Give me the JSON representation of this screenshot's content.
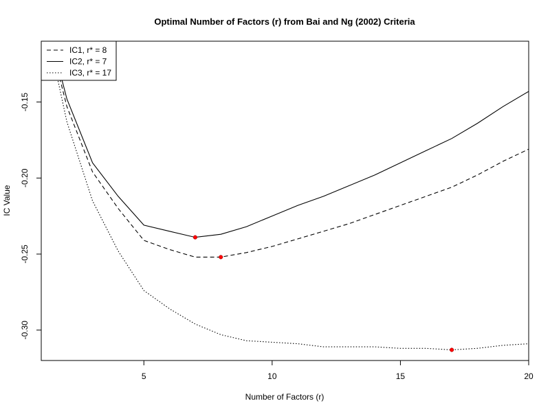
{
  "chart_data": {
    "type": "line",
    "title": "Optimal Number of Factors (r) from Bai and Ng (2002) Criteria",
    "xlabel": "Number of Factors (r)",
    "ylabel": "IC Value",
    "xlim": [
      1,
      20
    ],
    "ylim": [
      -0.32,
      -0.11
    ],
    "x_ticks": [
      5,
      10,
      15,
      20
    ],
    "y_ticks": [
      -0.15,
      -0.2,
      -0.25,
      -0.3
    ],
    "x_tick_labels": [
      "5",
      "10",
      "15",
      "20"
    ],
    "y_tick_labels": [
      "-0.15",
      "-0.20",
      "-0.25",
      "-0.30"
    ],
    "grid": false,
    "legend_position": "top-left",
    "x": [
      1,
      2,
      3,
      4,
      5,
      6,
      7,
      8,
      9,
      10,
      11,
      12,
      13,
      14,
      15,
      16,
      17,
      18,
      19,
      20
    ],
    "series": [
      {
        "name": "IC1, r* = 8",
        "line_style": "dashed",
        "optimum_r": 8,
        "values": [
          -0.086,
          -0.153,
          -0.196,
          -0.22,
          -0.241,
          -0.247,
          -0.252,
          -0.252,
          -0.249,
          -0.245,
          -0.24,
          -0.235,
          -0.23,
          -0.224,
          -0.218,
          -0.212,
          -0.206,
          -0.198,
          -0.189,
          -0.181
        ]
      },
      {
        "name": "IC2, r* = 7",
        "line_style": "solid",
        "optimum_r": 7,
        "values": [
          -0.083,
          -0.148,
          -0.19,
          -0.212,
          -0.231,
          -0.235,
          -0.239,
          -0.237,
          -0.232,
          -0.225,
          -0.218,
          -0.212,
          -0.205,
          -0.198,
          -0.19,
          -0.182,
          -0.174,
          -0.164,
          -0.153,
          -0.143
        ]
      },
      {
        "name": "IC3, r* = 17",
        "line_style": "dotted",
        "optimum_r": 17,
        "values": [
          -0.085,
          -0.163,
          -0.215,
          -0.248,
          -0.274,
          -0.286,
          -0.296,
          -0.303,
          -0.307,
          -0.308,
          -0.309,
          -0.311,
          -0.311,
          -0.311,
          -0.312,
          -0.312,
          -0.313,
          -0.312,
          -0.31,
          -0.309
        ]
      }
    ],
    "marker_color": "#ff0000"
  }
}
